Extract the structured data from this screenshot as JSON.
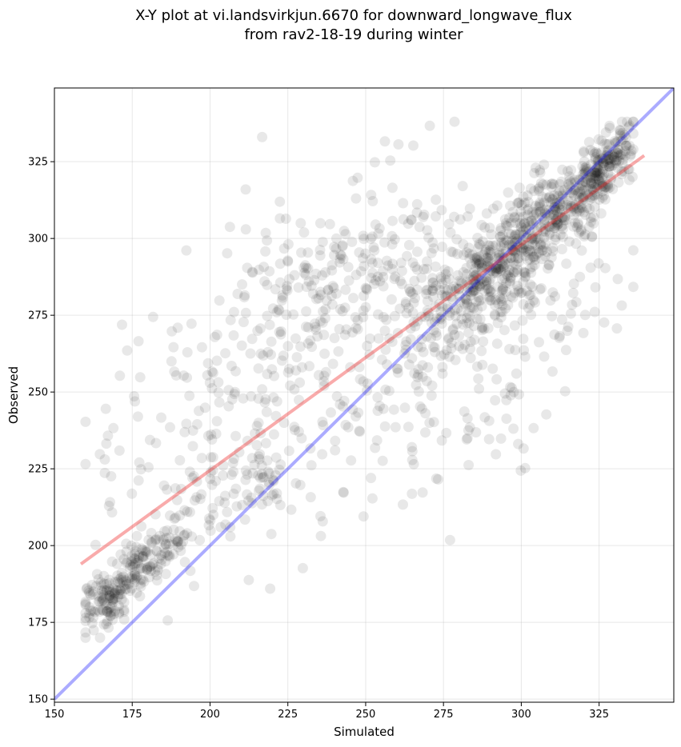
{
  "chart_data": {
    "type": "scatter",
    "title_line1": "X-Y plot at vi.landsvirkjun.6670 for downward_longwave_flux",
    "title_line2": "from rav2-18-19 during winter",
    "xlabel": "Simulated",
    "ylabel": "Observed",
    "xlim": [
      150,
      349
    ],
    "ylim": [
      149,
      349
    ],
    "xticks": [
      150,
      175,
      200,
      225,
      250,
      275,
      300,
      325
    ],
    "yticks": [
      150,
      175,
      200,
      225,
      250,
      275,
      300,
      325
    ],
    "grid": true,
    "point_color": "#000000",
    "identity_line": {
      "name": "1:1 line",
      "color": "#0000ff",
      "x": [
        150,
        349
      ],
      "y": [
        150,
        349
      ]
    },
    "fit_line": {
      "name": "linear fit",
      "color": "#ee2222",
      "x": [
        158.5,
        339.5
      ],
      "y": [
        194,
        327
      ]
    },
    "clusters": [
      {
        "cx": 167,
        "cy": 182,
        "sx": 4.5,
        "sy": 5,
        "n": 120,
        "rho": 0.5
      },
      {
        "cx": 178,
        "cy": 193,
        "sx": 4,
        "sy": 5,
        "n": 80,
        "rho": 0.4
      },
      {
        "cx": 186,
        "cy": 200,
        "sx": 3,
        "sy": 3,
        "n": 30,
        "rho": 0.3
      },
      {
        "cx": 195,
        "cy": 215,
        "sx": 8,
        "sy": 14,
        "n": 55,
        "rho": 0.3
      },
      {
        "cx": 180,
        "cy": 240,
        "sx": 10,
        "sy": 22,
        "n": 45,
        "rho": 0.2
      },
      {
        "cx": 217,
        "cy": 222,
        "sx": 3,
        "sy": 4,
        "n": 30,
        "rho": 0.2
      },
      {
        "cx": 215,
        "cy": 250,
        "sx": 14,
        "sy": 30,
        "n": 150,
        "rho": 0.3
      },
      {
        "cx": 232,
        "cy": 285,
        "sx": 14,
        "sy": 14,
        "n": 110,
        "rho": 0.2
      },
      {
        "cx": 255,
        "cy": 265,
        "sx": 16,
        "sy": 30,
        "n": 160,
        "rho": 0.3
      },
      {
        "cx": 265,
        "cy": 290,
        "sx": 15,
        "sy": 14,
        "n": 90,
        "rho": 0.2
      },
      {
        "cx": 282,
        "cy": 282,
        "sx": 10,
        "sy": 13,
        "n": 180,
        "rho": 0.6
      },
      {
        "cx": 296,
        "cy": 294,
        "sx": 9,
        "sy": 12,
        "n": 240,
        "rho": 0.6
      },
      {
        "cx": 290,
        "cy": 245,
        "sx": 12,
        "sy": 20,
        "n": 60,
        "rho": 0.2
      },
      {
        "cx": 313,
        "cy": 308,
        "sx": 8,
        "sy": 10,
        "n": 220,
        "rho": 0.6
      },
      {
        "cx": 327,
        "cy": 324,
        "sx": 5,
        "sy": 7,
        "n": 180,
        "rho": 0.7
      },
      {
        "cx": 310,
        "cy": 275,
        "sx": 10,
        "sy": 12,
        "n": 50,
        "rho": 0.2
      }
    ]
  }
}
